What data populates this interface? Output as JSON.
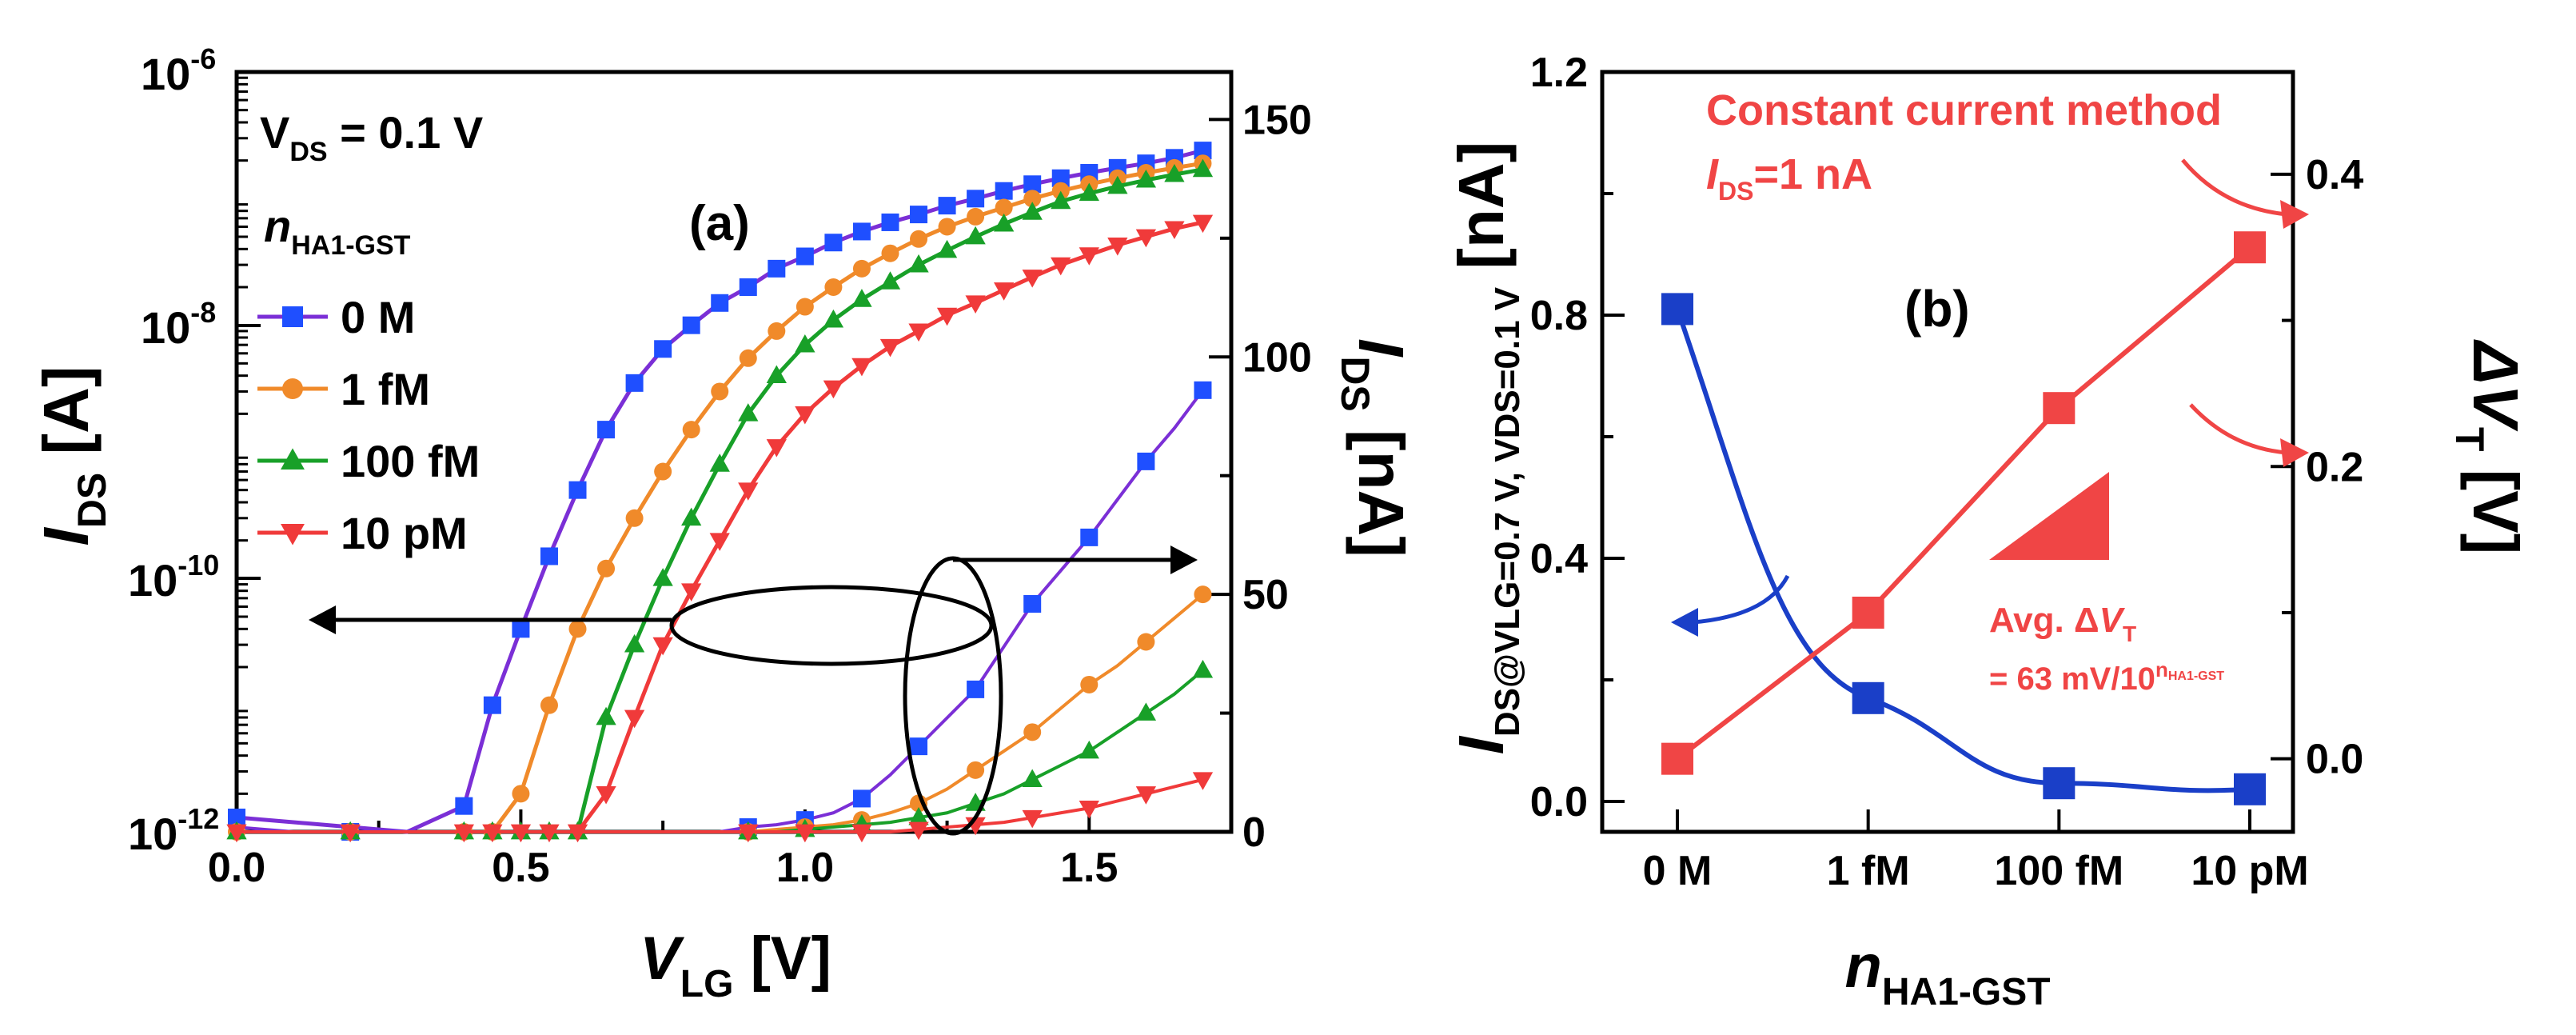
{
  "chart_data": [
    {
      "panel_label": "(a)",
      "type": "line",
      "annotation": "V_DS = 0.1 V",
      "legend_title": "n_HA1-GST",
      "xlabel": "V_LG [V]",
      "ylabel_left": "I_DS [A]",
      "ylabel_right": "I_DS [nA]",
      "x_ticks": [
        "0.0",
        "0.5",
        "1.0",
        "1.5"
      ],
      "y_left_ticks": [
        "10-12",
        "10-10",
        "10-8",
        "10-6"
      ],
      "y_right_ticks": [
        "0",
        "50",
        "100",
        "150"
      ],
      "xlim": [
        0.0,
        1.75
      ],
      "ylim_left_log": [
        1e-12,
        1e-06
      ],
      "ylim_right": [
        0,
        160
      ],
      "x": [
        0.0,
        0.1,
        0.2,
        0.3,
        0.4,
        0.45,
        0.5,
        0.55,
        0.6,
        0.65,
        0.7,
        0.75,
        0.8,
        0.85,
        0.9,
        0.95,
        1.0,
        1.05,
        1.1,
        1.15,
        1.2,
        1.25,
        1.3,
        1.35,
        1.4,
        1.45,
        1.5,
        1.55,
        1.6,
        1.65,
        1.7
      ],
      "series": [
        {
          "name": "0 M",
          "color": "#1f4fff",
          "line_color": "#7b2fd6",
          "marker": "square",
          "log_values": [
            1.3e-12,
            1e-12,
            1e-12,
            1e-12,
            1.6e-12,
            1e-11,
            4e-11,
            1.5e-10,
            5e-10,
            1.5e-09,
            3.5e-09,
            6.5e-09,
            1e-08,
            1.5e-08,
            2e-08,
            2.8e-08,
            3.5e-08,
            4.5e-08,
            5.5e-08,
            6.5e-08,
            7.5e-08,
            8.8e-08,
            1e-07,
            1.15e-07,
            1.3e-07,
            1.45e-07,
            1.6e-07,
            1.75e-07,
            1.9e-07,
            2.1e-07,
            2.4e-07
          ],
          "linear_values_nA": [
            1,
            0,
            0,
            0,
            0,
            0,
            0,
            0,
            0,
            0,
            0,
            0,
            0,
            0,
            1,
            1.5,
            2.5,
            4,
            7,
            12,
            18,
            24,
            30,
            39,
            48,
            55,
            62,
            70,
            78,
            85,
            93
          ]
        },
        {
          "name": "1 fM",
          "color": "#f08a2a",
          "line_color": "#f08a2a",
          "marker": "circle",
          "log_values": [
            1e-12,
            1e-12,
            1e-12,
            1e-12,
            1e-12,
            1e-12,
            2e-12,
            1e-11,
            4e-11,
            1.2e-10,
            3e-10,
            7e-10,
            1.5e-09,
            3e-09,
            5.5e-09,
            9e-09,
            1.4e-08,
            2e-08,
            2.8e-08,
            3.7e-08,
            4.8e-08,
            6e-08,
            7.2e-08,
            8.5e-08,
            1e-07,
            1.15e-07,
            1.3e-07,
            1.45e-07,
            1.6e-07,
            1.75e-07,
            1.9e-07
          ],
          "linear_values_nA": [
            0,
            0,
            0,
            0,
            0,
            0,
            0,
            0,
            0,
            0,
            0,
            0,
            0,
            0,
            0,
            0.5,
            1,
            1.5,
            2.5,
            4,
            6,
            9,
            13,
            17,
            21,
            26,
            31,
            35,
            40,
            45,
            50
          ]
        },
        {
          "name": "100 fM",
          "color": "#18a028",
          "line_color": "#18a028",
          "marker": "triangle-up",
          "log_values": [
            1e-12,
            1e-12,
            1e-12,
            1e-12,
            1e-12,
            1e-12,
            1e-12,
            1e-12,
            1e-12,
            8e-12,
            3e-11,
            1e-10,
            3e-10,
            8e-10,
            2e-09,
            4e-09,
            7e-09,
            1.1e-08,
            1.6e-08,
            2.2e-08,
            3e-08,
            3.9e-08,
            5e-08,
            6.3e-08,
            7.8e-08,
            9.5e-08,
            1.1e-07,
            1.25e-07,
            1.4e-07,
            1.55e-07,
            1.7e-07
          ],
          "linear_values_nA": [
            0,
            0,
            0,
            0,
            0,
            0,
            0,
            0,
            0,
            0,
            0,
            0,
            0,
            0,
            0,
            0,
            0.5,
            1,
            1.5,
            2,
            3,
            4,
            6,
            8,
            11,
            14,
            17,
            21,
            25,
            29,
            34
          ]
        },
        {
          "name": "10 pM",
          "color": "#f03a3a",
          "line_color": "#f03a3a",
          "marker": "triangle-down",
          "log_values": [
            1e-12,
            1e-12,
            1e-12,
            1e-12,
            1e-12,
            1e-12,
            1e-12,
            1e-12,
            1e-12,
            2e-12,
            8e-12,
            3e-11,
            8e-11,
            2e-10,
            5e-10,
            1.1e-09,
            2e-09,
            3.2e-09,
            4.8e-09,
            6.8e-09,
            9e-09,
            1.2e-08,
            1.5e-08,
            1.9e-08,
            2.4e-08,
            3e-08,
            3.6e-08,
            4.3e-08,
            5e-08,
            5.8e-08,
            6.5e-08
          ],
          "linear_values_nA": [
            0,
            0,
            0,
            0,
            0,
            0,
            0,
            0,
            0,
            0,
            0,
            0,
            0,
            0,
            0,
            0,
            0,
            0,
            0,
            0,
            0.5,
            1,
            1.5,
            2,
            3,
            4,
            5,
            6.5,
            8,
            9.5,
            11
          ]
        }
      ]
    },
    {
      "panel_label": "(b)",
      "type": "line",
      "xlabel": "n_HA1-GST",
      "ylabel_left": "I_DS@VLG=0.7 V, VDS=0.1 V [nA]",
      "ylabel_right": "ΔV_T [V]",
      "categories": [
        "0 M",
        "1 fM",
        "100 fM",
        "10 pM"
      ],
      "y_left_ticks": [
        "0.0",
        "0.4",
        "0.8",
        "1.2"
      ],
      "y_right_ticks": [
        "0.0",
        "0.2",
        "0.4"
      ],
      "ylim_left": [
        -0.05,
        1.2
      ],
      "ylim_right": [
        -0.05,
        0.47
      ],
      "series": [
        {
          "name": "I_DS",
          "axis": "left",
          "color": "#1a3fc8",
          "values": [
            0.81,
            0.17,
            0.03,
            0.02
          ]
        },
        {
          "name": "ΔV_T",
          "axis": "right",
          "color": "#f04545",
          "values": [
            0.0,
            0.1,
            0.24,
            0.35
          ]
        }
      ],
      "annotations": {
        "method": "Constant current method",
        "criterion": "I_DS=1 nA",
        "avg_label": "Avg. ΔV_T",
        "avg_value": "= 63 mV/10^n_HA1-GST"
      }
    }
  ],
  "labels": {
    "a_vds": "V",
    "a_vds_sub": "DS",
    "a_vds_val": " = 0.1 V",
    "a_n": "n",
    "a_n_sub": "HA1-GST",
    "a_panel": "(a)",
    "a_x_main": "V",
    "a_x_sub": "LG",
    "a_x_unit": " [V]",
    "a_yl_main": "I",
    "a_yl_sub": "DS",
    "a_yl_unit": " [A]",
    "a_yr_main": "I",
    "a_yr_sub": "DS",
    "a_yr_unit": " [nA]",
    "b_panel": "(b)",
    "b_method": "Constant current method",
    "b_crit_main": "I",
    "b_crit_sub": "DS",
    "b_crit_val": "=1 nA",
    "b_avg_1": "Avg. Δ",
    "b_avg_V": "V",
    "b_avg_T": "T",
    "b_avg_2": "= 63 mV/10",
    "b_avg_sup": "n",
    "b_avg_supsub": "HA1-GST",
    "b_x_main": "n",
    "b_x_sub": "HA1-GST",
    "b_yl_main": "I",
    "b_yl_sub": "DS@VLG=0.7 V, VDS=0.1 V",
    "b_yl_unit": " [nA]",
    "b_yr_main": "ΔV",
    "b_yr_sub": "T",
    "b_yr_unit": " [V]"
  },
  "tick_exp": {
    "base": "10",
    "e12": "-12",
    "e10": "-10",
    "e8": "-8",
    "e6": "-6"
  }
}
